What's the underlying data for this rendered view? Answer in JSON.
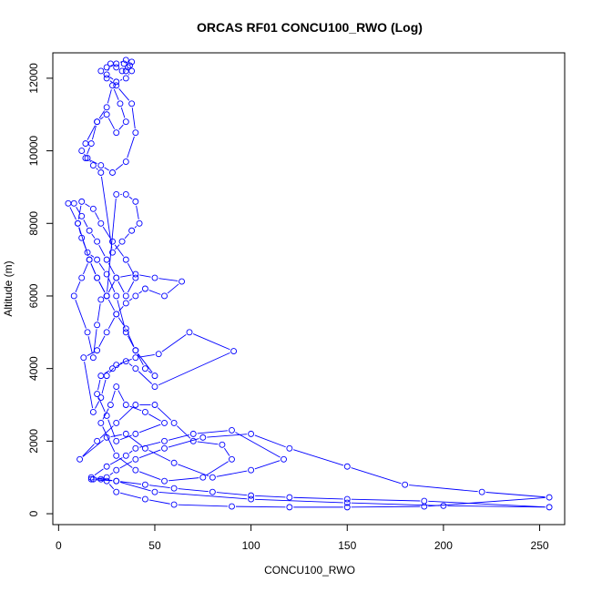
{
  "chart_data": {
    "type": "line",
    "title": "ORCAS RF01 CONCU100_RWO (Log)",
    "xlabel": "CONCU100_RWO",
    "ylabel": "Altitude (m)",
    "xlim": [
      -3,
      263
    ],
    "ylim": [
      -300,
      12700
    ],
    "x_ticks": [
      0,
      50,
      100,
      150,
      200,
      250
    ],
    "y_ticks": [
      0,
      2000,
      4000,
      6000,
      8000,
      10000,
      12000
    ],
    "grid": false,
    "legend": "none",
    "colors": {
      "series": "#0000ff",
      "axis": "#000000"
    },
    "series": [
      {
        "x": [
          22,
          18,
          25,
          30,
          40,
          55,
          75,
          100,
          120,
          150,
          180,
          220,
          255,
          190,
          150,
          120,
          90,
          60,
          45,
          30,
          25,
          17,
          30,
          45,
          60,
          80,
          100,
          120,
          150,
          190,
          255,
          200,
          150,
          100,
          50,
          30,
          17,
          25,
          35,
          40,
          55,
          70,
          90,
          117,
          100,
          80,
          60,
          45,
          35,
          25,
          11,
          20,
          30,
          40,
          50,
          60,
          70,
          85,
          90,
          75,
          55,
          40,
          30,
          22,
          27,
          30,
          35,
          45,
          55,
          40,
          30,
          25,
          20,
          22,
          28,
          35,
          40,
          50,
          91,
          68,
          52,
          40,
          30,
          25,
          22,
          18,
          13,
          20,
          25,
          30,
          35,
          40,
          45,
          55,
          64,
          50,
          40,
          30,
          25,
          22,
          20,
          18,
          15,
          8,
          12,
          16,
          20,
          25,
          30,
          35,
          40,
          45,
          50,
          40,
          35,
          30,
          25,
          20,
          15,
          12,
          10,
          5,
          8,
          12,
          16,
          20,
          25,
          30,
          35,
          40,
          35,
          28,
          22,
          18,
          12,
          10,
          16,
          20,
          25,
          30,
          35,
          40,
          42,
          38,
          33,
          28,
          22,
          18,
          15,
          12,
          14,
          20,
          25,
          30,
          35,
          32,
          28,
          25,
          20,
          17,
          14,
          22,
          28,
          35,
          40,
          38,
          30,
          25,
          22,
          25,
          30,
          35,
          38,
          37,
          35,
          33,
          30,
          27,
          25,
          30,
          35,
          38,
          36,
          34
        ],
        "y": [
          950,
          950,
          1000,
          1200,
          1500,
          1800,
          2100,
          2200,
          1800,
          1300,
          800,
          600,
          450,
          200,
          180,
          180,
          200,
          250,
          400,
          600,
          900,
          950,
          900,
          800,
          700,
          600,
          500,
          450,
          400,
          350,
          180,
          220,
          300,
          400,
          600,
          900,
          1000,
          1300,
          1600,
          1800,
          2000,
          2200,
          2300,
          1500,
          1200,
          1000,
          1400,
          1800,
          2200,
          2100,
          1500,
          2000,
          2500,
          3000,
          3000,
          2500,
          2000,
          1900,
          1500,
          1000,
          900,
          1200,
          1600,
          2500,
          3000,
          3500,
          3000,
          2800,
          2500,
          2200,
          2000,
          2700,
          3300,
          3800,
          4000,
          4200,
          4000,
          3500,
          4480,
          5000,
          4400,
          4300,
          4100,
          3800,
          3200,
          2800,
          4300,
          4500,
          5000,
          5500,
          5800,
          6000,
          6200,
          6000,
          6400,
          6500,
          6600,
          6500,
          6000,
          5900,
          5200,
          4300,
          5000,
          6000,
          6500,
          7000,
          6500,
          6000,
          5500,
          5100,
          4500,
          4000,
          3800,
          4500,
          5000,
          6000,
          6600,
          7000,
          7200,
          7600,
          8000,
          8550,
          8550,
          8200,
          7800,
          7500,
          7000,
          6500,
          6000,
          6500,
          7000,
          7500,
          8000,
          8400,
          8600,
          8000,
          7000,
          6500,
          6000,
          8800,
          8800,
          8600,
          8000,
          7800,
          7500,
          7200,
          9400,
          9600,
          9800,
          10000,
          10200,
          10800,
          11000,
          10500,
          10800,
          11300,
          11800,
          11200,
          10800,
          10200,
          9800,
          9600,
          9400,
          9700,
          10500,
          11300,
          11800,
          12000,
          12200,
          12300,
          12400,
          12500,
          12450,
          12350,
          12200,
          12200,
          12300,
          12400,
          12100,
          11900,
          12000,
          12200,
          12300,
          12400
        ]
      }
    ]
  }
}
